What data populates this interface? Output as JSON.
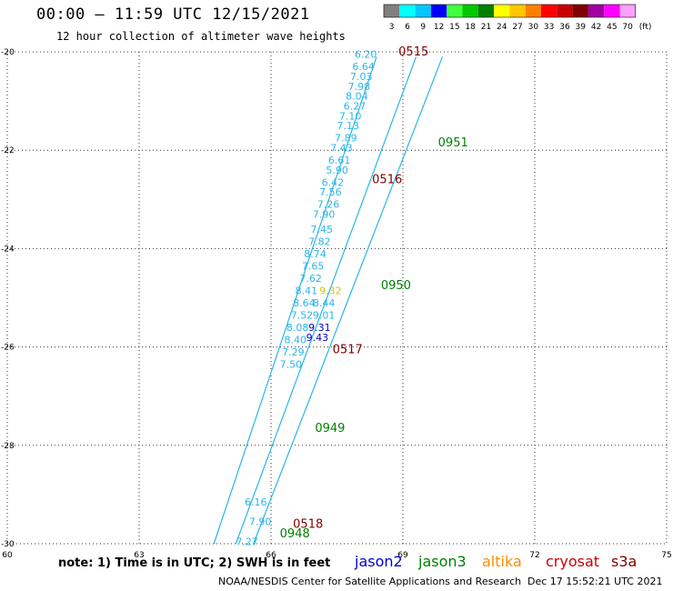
{
  "header": {
    "title": "00:00 – 11:59 UTC 12/15/2021",
    "subtitle": "12 hour collection of altimeter wave heights"
  },
  "legend": {
    "unit": "(ft)",
    "bins": [
      {
        "label": "3",
        "color": "#808080"
      },
      {
        "label": "6",
        "color": "#00ffff"
      },
      {
        "label": "9",
        "color": "#00c8ff"
      },
      {
        "label": "12",
        "color": "#0000ff"
      },
      {
        "label": "15",
        "color": "#40ff40"
      },
      {
        "label": "18",
        "color": "#00c800"
      },
      {
        "label": "21",
        "color": "#008000"
      },
      {
        "label": "24",
        "color": "#ffff00"
      },
      {
        "label": "27",
        "color": "#ffc800"
      },
      {
        "label": "30",
        "color": "#ff8000"
      },
      {
        "label": "33",
        "color": "#ff0000"
      },
      {
        "label": "36",
        "color": "#c80000"
      },
      {
        "label": "39",
        "color": "#800000"
      },
      {
        "label": "42",
        "color": "#a000a0"
      },
      {
        "label": "45",
        "color": "#ff00ff"
      },
      {
        "label": "70",
        "color": "#ffa0ff"
      }
    ]
  },
  "footer": {
    "note": "note: 1) Time is in UTC; 2) SWH is in feet",
    "credit": "NOAA/NESDIS Center for Satellite Applications and Research",
    "timestamp": "Dec 17 15:52:21 UTC 2021",
    "satellites": [
      {
        "name": "jason2",
        "color": "#0000cc"
      },
      {
        "name": "jason3",
        "color": "#008000"
      },
      {
        "name": "altika",
        "color": "#ff8c00"
      },
      {
        "name": "cryosat",
        "color": "#cc0000"
      },
      {
        "name": "s3a",
        "color": "#800000"
      }
    ]
  },
  "chart_data": {
    "type": "scatter",
    "title": "00:00 – 11:59 UTC 12/15/2021",
    "subtitle": "12 hour collection of altimeter wave heights",
    "xlabel": "",
    "ylabel": "",
    "xlim": [
      60,
      75
    ],
    "ylim": [
      -30,
      -20
    ],
    "xticks": [
      60,
      63,
      66,
      69,
      72,
      75
    ],
    "yticks": [
      -20,
      -22,
      -24,
      -26,
      -28,
      -30
    ],
    "grid": true,
    "tracks": [
      {
        "lat": [
          -20.1,
          -30.0
        ],
        "lon": [
          68.4,
          64.7
        ],
        "color": "#29b6e8"
      },
      {
        "lat": [
          -20.1,
          -30.0
        ],
        "lon": [
          69.3,
          65.2
        ],
        "color": "#29b6e8"
      },
      {
        "lat": [
          -20.1,
          -30.0
        ],
        "lon": [
          69.9,
          65.6
        ],
        "color": "#29b6e8"
      }
    ],
    "wave_labels": [
      {
        "lat": -20.05,
        "lon": 67.9,
        "text": "6.20",
        "color": "#29b6e8"
      },
      {
        "lat": -20.3,
        "lon": 67.85,
        "text": "6.64",
        "color": "#29b6e8"
      },
      {
        "lat": -20.5,
        "lon": 67.8,
        "text": "7.03",
        "color": "#29b6e8"
      },
      {
        "lat": -20.7,
        "lon": 67.75,
        "text": "7.98",
        "color": "#29b6e8"
      },
      {
        "lat": -20.9,
        "lon": 67.7,
        "text": "8.04",
        "color": "#29b6e8"
      },
      {
        "lat": -21.1,
        "lon": 67.65,
        "text": "6.27",
        "color": "#29b6e8"
      },
      {
        "lat": -21.3,
        "lon": 67.55,
        "text": "7.10",
        "color": "#29b6e8"
      },
      {
        "lat": -21.5,
        "lon": 67.5,
        "text": "7.13",
        "color": "#29b6e8"
      },
      {
        "lat": -21.75,
        "lon": 67.45,
        "text": "7.89",
        "color": "#29b6e8"
      },
      {
        "lat": -21.95,
        "lon": 67.35,
        "text": "7.43",
        "color": "#29b6e8"
      },
      {
        "lat": -22.2,
        "lon": 67.3,
        "text": "6.61",
        "color": "#29b6e8"
      },
      {
        "lat": -22.4,
        "lon": 67.25,
        "text": "5.90",
        "color": "#29b6e8"
      },
      {
        "lat": -22.65,
        "lon": 67.15,
        "text": "6.42",
        "color": "#29b6e8"
      },
      {
        "lat": -22.85,
        "lon": 67.1,
        "text": "7.56",
        "color": "#29b6e8"
      },
      {
        "lat": -23.1,
        "lon": 67.05,
        "text": "7.26",
        "color": "#29b6e8"
      },
      {
        "lat": -23.3,
        "lon": 66.95,
        "text": "7.90",
        "color": "#29b6e8"
      },
      {
        "lat": -23.6,
        "lon": 66.9,
        "text": "7.45",
        "color": "#29b6e8"
      },
      {
        "lat": -23.85,
        "lon": 66.85,
        "text": "7.82",
        "color": "#29b6e8"
      },
      {
        "lat": -24.1,
        "lon": 66.75,
        "text": "8.74",
        "color": "#29b6e8"
      },
      {
        "lat": -24.35,
        "lon": 66.7,
        "text": "7.65",
        "color": "#29b6e8"
      },
      {
        "lat": -24.6,
        "lon": 66.65,
        "text": "7.62",
        "color": "#29b6e8"
      },
      {
        "lat": -24.85,
        "lon": 66.55,
        "text": "8.41",
        "color": "#29b6e8"
      },
      {
        "lat": -25.1,
        "lon": 66.5,
        "text": "8.64",
        "color": "#29b6e8"
      },
      {
        "lat": -25.35,
        "lon": 66.45,
        "text": "7.52",
        "color": "#29b6e8"
      },
      {
        "lat": -25.6,
        "lon": 66.35,
        "text": "8.08",
        "color": "#29b6e8"
      },
      {
        "lat": -25.85,
        "lon": 66.3,
        "text": "8.40",
        "color": "#29b6e8"
      },
      {
        "lat": -26.1,
        "lon": 66.25,
        "text": "7.29",
        "color": "#29b6e8"
      },
      {
        "lat": -26.35,
        "lon": 66.2,
        "text": "7.50",
        "color": "#29b6e8"
      },
      {
        "lat": -24.85,
        "lon": 67.1,
        "text": "9.32",
        "color": "#d4c400"
      },
      {
        "lat": -25.6,
        "lon": 66.85,
        "text": "9.31",
        "color": "#0000cc"
      },
      {
        "lat": -25.8,
        "lon": 66.8,
        "text": "9.43",
        "color": "#0000cc"
      },
      {
        "lat": -25.35,
        "lon": 66.95,
        "text": "9.01",
        "color": "#29b6e8"
      },
      {
        "lat": -25.1,
        "lon": 66.95,
        "text": "8.44",
        "color": "#29b6e8"
      },
      {
        "lat": -29.15,
        "lon": 65.4,
        "text": "6.16",
        "color": "#29b6e8"
      },
      {
        "lat": -29.55,
        "lon": 65.5,
        "text": "7.90",
        "color": "#29b6e8"
      },
      {
        "lat": -29.95,
        "lon": 65.2,
        "text": "7.27",
        "color": "#29b6e8"
      }
    ],
    "time_labels": [
      {
        "lat": -20.0,
        "lon": 68.9,
        "text": "0515",
        "color": "#800000"
      },
      {
        "lat": -22.6,
        "lon": 68.3,
        "text": "0516",
        "color": "#800000"
      },
      {
        "lat": -26.05,
        "lon": 67.4,
        "text": "0517",
        "color": "#800000"
      },
      {
        "lat": -29.6,
        "lon": 66.5,
        "text": "0518",
        "color": "#800000"
      },
      {
        "lat": -21.85,
        "lon": 69.8,
        "text": "0951",
        "color": "#008000"
      },
      {
        "lat": -24.75,
        "lon": 68.5,
        "text": "0950",
        "color": "#008000"
      },
      {
        "lat": -27.65,
        "lon": 67.0,
        "text": "0949",
        "color": "#008000"
      },
      {
        "lat": -29.8,
        "lon": 66.2,
        "text": "0948",
        "color": "#008000"
      }
    ]
  }
}
